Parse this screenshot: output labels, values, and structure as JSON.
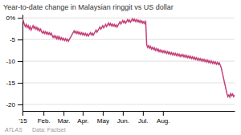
{
  "chart_data": {
    "type": "line",
    "title": "Year-to-date change in Malaysian ringgit vs US dollar",
    "color": "#c4417a",
    "grid": true,
    "annotations": [
      "ATLAS",
      "Data: Factset"
    ],
    "ylim": [
      -21.5,
      0.8
    ],
    "yticks": [
      {
        "value": 0,
        "label": "0%"
      },
      -5,
      -10,
      -15,
      -20
    ],
    "categories": [
      "'15",
      null,
      null,
      null,
      null,
      null,
      null,
      null,
      null,
      null,
      null,
      null,
      null,
      null,
      null,
      null,
      null,
      null,
      null,
      null,
      null,
      null,
      "Feb.",
      null,
      null,
      null,
      null,
      null,
      null,
      null,
      null,
      null,
      null,
      null,
      null,
      null,
      null,
      null,
      null,
      null,
      null,
      null,
      null,
      "Mar.",
      null,
      null,
      null,
      null,
      null,
      null,
      null,
      null,
      null,
      null,
      null,
      null,
      null,
      null,
      null,
      null,
      null,
      null,
      null,
      "Apr.",
      null,
      null,
      null,
      null,
      null,
      null,
      null,
      null,
      null,
      null,
      null,
      null,
      null,
      null,
      null,
      null,
      null,
      null,
      null,
      null,
      "May",
      null,
      null,
      null,
      null,
      null,
      null,
      null,
      null,
      null,
      null,
      null,
      null,
      null,
      null,
      null,
      null,
      null,
      null,
      null,
      null,
      "Jun.",
      null,
      null,
      null,
      null,
      null,
      null,
      null,
      null,
      null,
      null,
      null,
      null,
      null,
      null,
      null,
      null,
      null,
      null,
      null,
      null,
      "Jul.",
      null,
      null,
      null,
      null,
      null,
      null,
      null,
      null,
      null,
      null,
      null,
      null,
      null,
      null,
      null,
      null,
      null,
      null,
      null,
      null,
      "Aug.",
      null,
      null,
      null,
      null,
      null,
      null,
      null,
      null,
      null,
      null,
      null,
      null,
      null,
      null,
      null,
      null,
      null,
      null,
      null,
      null,
      null,
      null,
      null,
      null,
      null,
      null,
      null,
      null,
      null,
      null,
      null,
      null,
      null,
      null,
      null,
      null,
      null,
      null,
      null,
      null,
      null,
      null,
      null,
      null,
      null,
      null,
      null,
      null,
      null,
      null,
      null,
      null,
      null,
      null,
      null,
      null,
      null,
      null,
      null,
      null,
      null,
      null,
      null,
      null,
      null,
      null,
      null,
      null,
      null,
      null,
      null,
      null,
      null,
      null,
      null
    ],
    "values": [
      0.0,
      -0.8,
      -1.5,
      -2.0,
      -1.5,
      -2.2,
      -1.8,
      -2.5,
      -2.0,
      -2.8,
      -2.3,
      -1.8,
      -2.4,
      -2.0,
      -2.6,
      -2.2,
      -2.8,
      -2.4,
      -3.0,
      -2.6,
      -3.2,
      -3.5,
      -3.1,
      -3.6,
      -3.2,
      -3.7,
      -3.3,
      -3.8,
      -3.4,
      -3.9,
      -3.5,
      -4.0,
      -4.5,
      -4.1,
      -4.6,
      -4.2,
      -4.8,
      -4.3,
      -4.9,
      -4.4,
      -5.0,
      -4.6,
      -5.1,
      -4.7,
      -5.2,
      -4.8,
      -5.3,
      -4.9,
      -5.4,
      -5.0,
      -4.6,
      -4.2,
      -3.8,
      -3.4,
      -3.0,
      -3.5,
      -3.1,
      -3.6,
      -3.2,
      -3.7,
      -3.3,
      -3.8,
      -3.4,
      -3.9,
      -3.5,
      -4.0,
      -3.6,
      -4.1,
      -3.7,
      -4.2,
      -3.8,
      -3.4,
      -3.9,
      -3.5,
      -4.0,
      -3.6,
      -3.2,
      -2.8,
      -3.3,
      -2.9,
      -2.5,
      -2.1,
      -2.6,
      -2.2,
      -1.8,
      -2.3,
      -1.9,
      -1.5,
      -2.0,
      -1.6,
      -1.2,
      -1.7,
      -1.3,
      -1.8,
      -1.4,
      -1.9,
      -1.5,
      -2.0,
      -1.6,
      -2.1,
      -1.7,
      -1.3,
      -0.9,
      -1.4,
      -1.0,
      -0.6,
      -1.1,
      -0.7,
      -1.2,
      -0.8,
      -0.4,
      -0.9,
      -0.5,
      -1.0,
      -0.6,
      -0.2,
      -0.7,
      -0.3,
      -0.8,
      -0.4,
      -0.9,
      -0.5,
      -1.0,
      -0.6,
      -1.1,
      -0.7,
      -1.2,
      -0.8,
      -1.3,
      -0.9,
      -6.2,
      -6.8,
      -6.4,
      -7.0,
      -6.6,
      -7.2,
      -6.8,
      -7.3,
      -6.9,
      -7.5,
      -7.1,
      -7.6,
      -7.2,
      -7.8,
      -7.4,
      -7.9,
      -7.5,
      -8.0,
      -7.6,
      -8.1,
      -7.7,
      -8.2,
      -7.8,
      -8.3,
      -7.9,
      -8.4,
      -8.0,
      -8.5,
      -8.1,
      -8.6,
      -8.2,
      -8.7,
      -8.3,
      -8.8,
      -8.4,
      -8.9,
      -8.5,
      -8.9,
      -8.5,
      -9.0,
      -8.6,
      -9.1,
      -8.7,
      -9.2,
      -8.8,
      -9.3,
      -8.9,
      -9.4,
      -9.0,
      -9.5,
      -9.1,
      -9.6,
      -9.2,
      -9.7,
      -9.3,
      -9.8,
      -9.4,
      -9.9,
      -9.5,
      -10.0,
      -9.6,
      -10.1,
      -9.7,
      -10.2,
      -9.8,
      -10.3,
      -9.9,
      -10.4,
      -10.0,
      -10.5,
      -10.1,
      -10.6,
      -10.2,
      -10.7,
      -10.3,
      -10.8,
      -10.4,
      -10.9,
      -11.5,
      -12.5,
      -13.5,
      -14.5,
      -15.5,
      -16.5,
      -17.5,
      -18.2,
      -17.8,
      -18.3,
      -17.5,
      -18.0,
      -17.6,
      -18.2,
      -17.8
    ]
  }
}
